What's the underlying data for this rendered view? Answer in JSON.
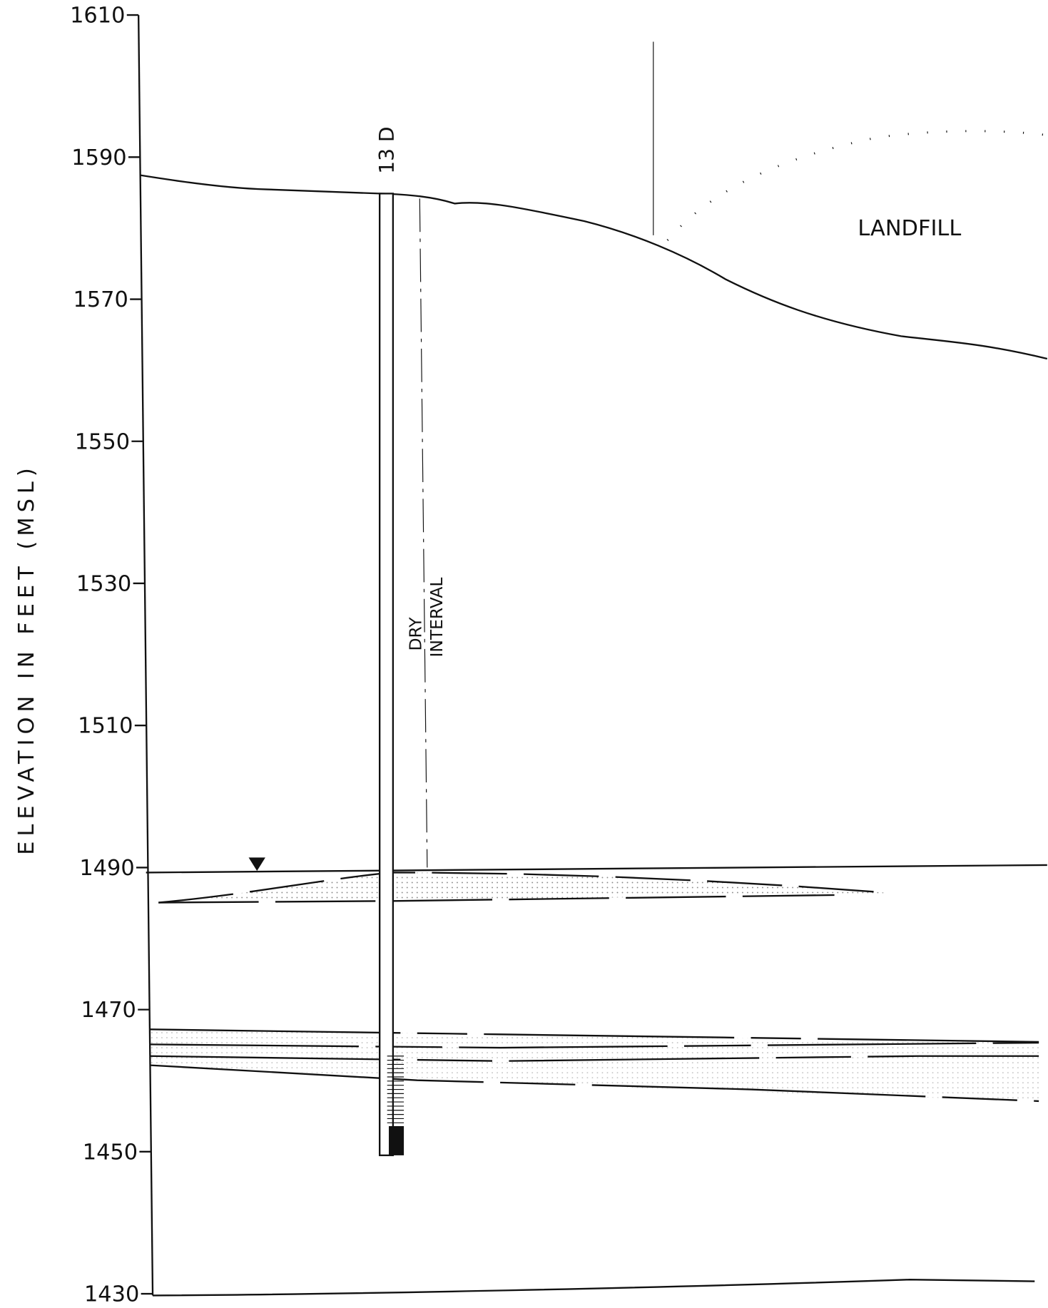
{
  "axis": {
    "label": "ELEVATION IN FEET (MSL)",
    "ticks": [
      1610,
      1590,
      1570,
      1550,
      1530,
      1510,
      1490,
      1470,
      1450,
      1430
    ]
  },
  "labels": {
    "well": "13 D",
    "landfill": "LANDFILL",
    "dry_interval": [
      "DRY",
      "INTERVAL"
    ]
  }
}
